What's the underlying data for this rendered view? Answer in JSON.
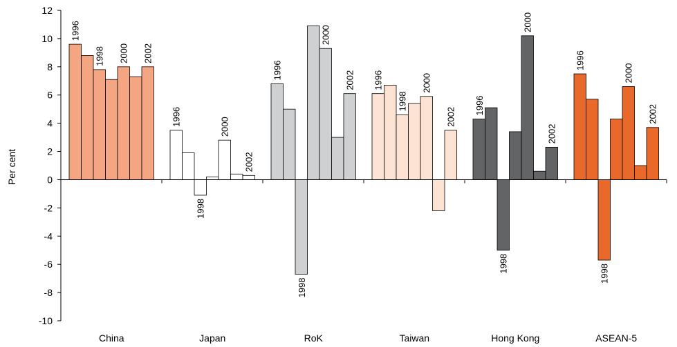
{
  "chart_data": {
    "type": "bar",
    "ylabel": "Per cent",
    "xlabel": "",
    "ylim": [
      -10,
      12
    ],
    "yticks": [
      12,
      10,
      8,
      6,
      4,
      2,
      0,
      -2,
      -4,
      -6,
      -8,
      -10
    ],
    "years": [
      "1996",
      "1997",
      "1998",
      "1999",
      "2000",
      "2001",
      "2002"
    ],
    "labeled_years": [
      "1996",
      "1998",
      "2000",
      "2002"
    ],
    "groups": [
      {
        "name": "China",
        "color": "#f4a582",
        "values": [
          9.6,
          8.8,
          7.8,
          7.1,
          8.0,
          7.3,
          8.0
        ]
      },
      {
        "name": "Japan",
        "color": "#ffffff",
        "values": [
          3.5,
          1.9,
          -1.1,
          0.2,
          2.8,
          0.4,
          0.3
        ]
      },
      {
        "name": "RoK",
        "color": "#cfd0d2",
        "values": [
          6.8,
          5.0,
          -6.7,
          10.9,
          9.3,
          3.0,
          6.1
        ]
      },
      {
        "name": "Taiwan",
        "color": "#fde3d3",
        "values": [
          6.1,
          6.7,
          4.6,
          5.4,
          5.9,
          -2.2,
          3.5
        ]
      },
      {
        "name": "Hong Kong",
        "color": "#636466",
        "values": [
          4.3,
          5.1,
          -5.0,
          3.4,
          10.2,
          0.6,
          2.3
        ]
      },
      {
        "name": "ASEAN-5",
        "color": "#e8692a",
        "values": [
          7.5,
          5.7,
          -5.7,
          4.3,
          6.6,
          1.0,
          3.7
        ]
      }
    ]
  }
}
